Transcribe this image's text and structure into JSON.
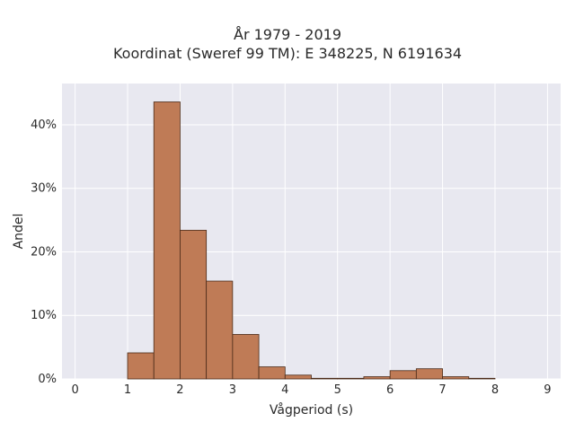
{
  "chart_data": {
    "type": "bar",
    "title": "År 1979 - 2019",
    "subtitle": "Koordinat (Sweref 99 TM): E 348225, N 6191634",
    "xlabel": "Vågperiod (s)",
    "ylabel": "Andel",
    "xlim": [
      -0.25,
      9.25
    ],
    "ylim": [
      0,
      46.5
    ],
    "xticks": [
      0,
      1,
      2,
      3,
      4,
      5,
      6,
      7,
      8,
      9
    ],
    "yticks": [
      0,
      10,
      20,
      30,
      40
    ],
    "ytick_labels": [
      "0%",
      "10%",
      "20%",
      "30%",
      "40%"
    ],
    "bin_width": 0.5,
    "bin_starts": [
      1.0,
      1.5,
      2.0,
      2.5,
      3.0,
      3.5,
      4.0,
      4.5,
      5.0,
      5.5,
      6.0,
      6.5,
      7.0,
      7.5
    ],
    "values": [
      4.1,
      43.6,
      23.4,
      15.4,
      7.0,
      1.9,
      0.6,
      0.1,
      0.1,
      0.35,
      1.3,
      1.6,
      0.35,
      0.1
    ],
    "grid": true,
    "bar_color": "#bf7b56",
    "edge_color": "#4a2a18",
    "plot_bg": "#e8e8f0"
  }
}
